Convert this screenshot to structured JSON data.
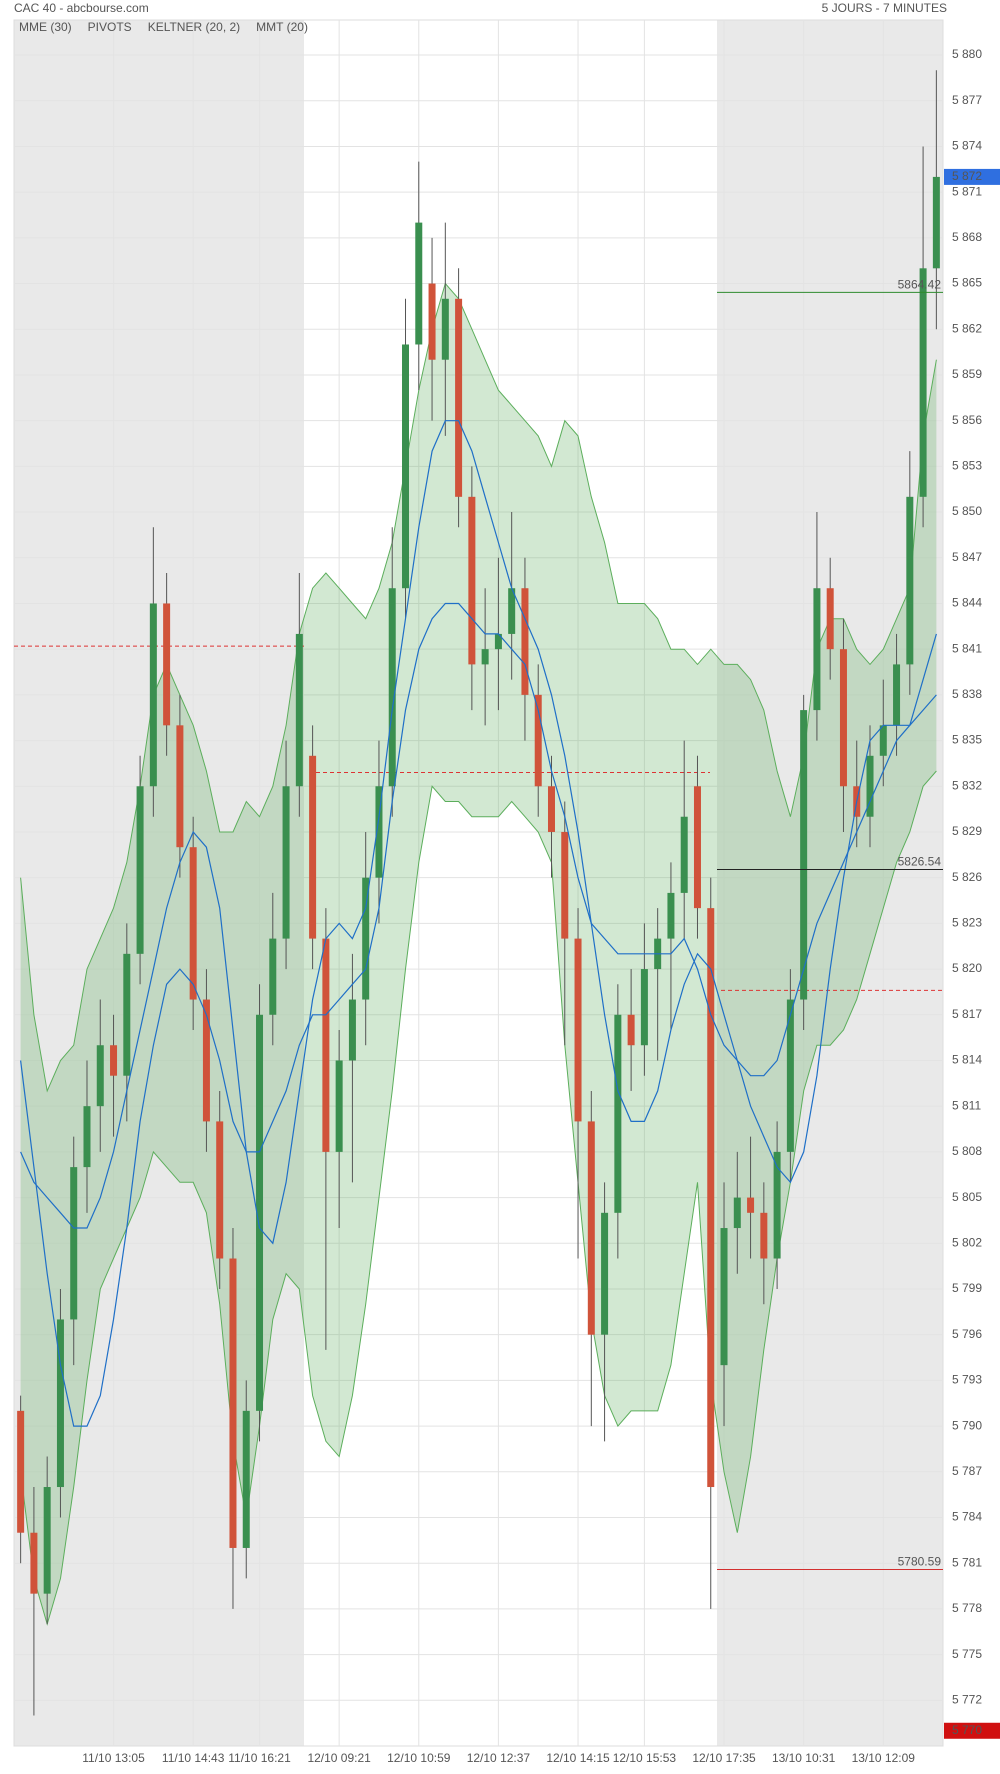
{
  "chart_data": {
    "type": "candlestick",
    "title": "CAC 40 - abcbourse.com",
    "subtitle": "5 JOURS - 7 MINUTES",
    "categories": [
      null,
      null,
      null,
      null,
      null,
      null,
      null,
      "11/10 13:05",
      null,
      null,
      null,
      null,
      null,
      "11/10 14:43",
      null,
      null,
      null,
      null,
      "11/10 16:21",
      null,
      null,
      null,
      null,
      null,
      "12/10 09:21",
      null,
      null,
      null,
      null,
      null,
      "12/10 10:59",
      null,
      null,
      null,
      null,
      null,
      "12/10 12:37",
      null,
      null,
      null,
      null,
      null,
      "12/10 14:15",
      null,
      null,
      null,
      null,
      "12/10 15:53",
      null,
      null,
      null,
      null,
      null,
      "12/10 17:35",
      null,
      null,
      null,
      null,
      null,
      "13/10 10:31",
      null,
      null,
      null,
      null,
      null,
      "13/10 12:09",
      null,
      null,
      null,
      null
    ],
    "ohlc": {
      "up_color": "#3a8f4f",
      "down_color": "#d0533a",
      "open": [
        5791,
        5783,
        5779,
        5786,
        5797,
        5807,
        5811,
        5815,
        5813,
        5821,
        5832,
        5844,
        5836,
        5828,
        5818,
        5810,
        5801,
        5782,
        5791,
        5817,
        5822,
        5832,
        5834,
        5822,
        5808,
        5814,
        5818,
        5826,
        5832,
        5845,
        5861,
        5865,
        5860,
        5864,
        5851,
        5840,
        5841,
        5842,
        5845,
        5838,
        5832,
        5829,
        5822,
        5810,
        5796,
        5804,
        5817,
        5815,
        5820,
        5822,
        5825,
        5832,
        5824,
        5794,
        5803,
        5805,
        5804,
        5801,
        5808,
        5818,
        5837,
        5845,
        5841,
        5832,
        5830,
        5834,
        5836,
        5840,
        5851,
        5866
      ],
      "high": [
        5792,
        5786,
        5788,
        5799,
        5809,
        5814,
        5818,
        5817,
        5823,
        5834,
        5849,
        5846,
        5838,
        5830,
        5820,
        5812,
        5803,
        5793,
        5819,
        5825,
        5835,
        5846,
        5836,
        5824,
        5816,
        5821,
        5829,
        5835,
        5849,
        5864,
        5873,
        5868,
        5869,
        5866,
        5853,
        5845,
        5847,
        5850,
        5847,
        5840,
        5834,
        5831,
        5824,
        5812,
        5806,
        5819,
        5820,
        5823,
        5824,
        5827,
        5835,
        5834,
        5826,
        5806,
        5808,
        5809,
        5806,
        5810,
        5820,
        5838,
        5850,
        5847,
        5843,
        5835,
        5836,
        5839,
        5842,
        5854,
        5874,
        5879
      ],
      "low": [
        5781,
        5771,
        5777,
        5784,
        5794,
        5804,
        5808,
        5809,
        5810,
        5819,
        5830,
        5834,
        5826,
        5816,
        5808,
        5799,
        5778,
        5780,
        5789,
        5815,
        5820,
        5830,
        5820,
        5795,
        5803,
        5806,
        5815,
        5823,
        5830,
        5843,
        5858,
        5856,
        5855,
        5849,
        5837,
        5836,
        5837,
        5839,
        5835,
        5830,
        5826,
        5815,
        5801,
        5790,
        5789,
        5801,
        5812,
        5813,
        5814,
        5816,
        5822,
        5822,
        5778,
        5790,
        5800,
        5801,
        5798,
        5799,
        5806,
        5816,
        5835,
        5839,
        5829,
        5828,
        5828,
        5832,
        5834,
        5838,
        5849,
        5862
      ],
      "close": [
        5783,
        5779,
        5786,
        5797,
        5807,
        5811,
        5815,
        5813,
        5821,
        5832,
        5844,
        5836,
        5828,
        5818,
        5810,
        5801,
        5782,
        5791,
        5817,
        5822,
        5832,
        5842,
        5822,
        5808,
        5814,
        5818,
        5826,
        5832,
        5845,
        5861,
        5869,
        5860,
        5864,
        5851,
        5840,
        5841,
        5842,
        5845,
        5838,
        5832,
        5829,
        5822,
        5810,
        5796,
        5804,
        5817,
        5815,
        5820,
        5822,
        5825,
        5830,
        5824,
        5786,
        5803,
        5805,
        5804,
        5801,
        5808,
        5818,
        5837,
        5845,
        5841,
        5832,
        5830,
        5834,
        5836,
        5840,
        5851,
        5866,
        5872
      ]
    },
    "keltner": {
      "name": "KELTNER (20, 2)",
      "color": "#5cae5c",
      "upper": [
        5826,
        5817,
        5812,
        5814,
        5815,
        5820,
        5822,
        5824,
        5827,
        5832,
        5838,
        5840,
        5838,
        5836,
        5833,
        5829,
        5829,
        5831,
        5830,
        5832,
        5836,
        5842,
        5845,
        5846,
        5845,
        5844,
        5843,
        5845,
        5848,
        5853,
        5858,
        5862,
        5865,
        5864,
        5862,
        5860,
        5858,
        5857,
        5856,
        5855,
        5853,
        5856,
        5855,
        5851,
        5848,
        5844,
        5844,
        5844,
        5843,
        5841,
        5841,
        5840,
        5841,
        5840,
        5840,
        5839,
        5837,
        5833,
        5830,
        5834,
        5841,
        5843,
        5843,
        5841,
        5840,
        5841,
        5843,
        5845,
        5855,
        5860
      ],
      "lower": [
        5787,
        5780,
        5777,
        5780,
        5786,
        5793,
        5799,
        5801,
        5803,
        5805,
        5808,
        5807,
        5806,
        5806,
        5804,
        5798,
        5789,
        5784,
        5790,
        5797,
        5800,
        5799,
        5792,
        5789,
        5788,
        5792,
        5798,
        5805,
        5812,
        5820,
        5827,
        5832,
        5831,
        5831,
        5830,
        5830,
        5830,
        5831,
        5830,
        5829,
        5827,
        5815,
        5806,
        5797,
        5792,
        5790,
        5791,
        5791,
        5791,
        5794,
        5800,
        5806,
        5793,
        5787,
        5783,
        5788,
        5795,
        5801,
        5806,
        5812,
        5815,
        5815,
        5816,
        5818,
        5821,
        5824,
        5827,
        5829,
        5832,
        5833
      ]
    },
    "series": [
      {
        "name": "MME (30)",
        "color": "#1f6fc7",
        "values": [
          5814,
          5807,
          5800,
          5794,
          5790,
          5790,
          5792,
          5797,
          5803,
          5810,
          5815,
          5819,
          5820,
          5819,
          5817,
          5814,
          5810,
          5808,
          5808,
          5810,
          5812,
          5815,
          5817,
          5817,
          5818,
          5819,
          5820,
          5824,
          5831,
          5837,
          5841,
          5843,
          5844,
          5844,
          5843,
          5842,
          5842,
          5841,
          5840,
          5837,
          5833,
          5830,
          5826,
          5823,
          5822,
          5821,
          5821,
          5821,
          5821,
          5821,
          5822,
          5820,
          5817,
          5815,
          5814,
          5813,
          5813,
          5814,
          5817,
          5820,
          5823,
          5825,
          5827,
          5829,
          5831,
          5833,
          5835,
          5836,
          5837,
          5838
        ]
      },
      {
        "name": "MMT (20)",
        "color": "#1f6fc7",
        "values": [
          5808,
          5806,
          5805,
          5804,
          5803,
          5803,
          5805,
          5808,
          5812,
          5816,
          5820,
          5824,
          5827,
          5829,
          5828,
          5824,
          5816,
          5808,
          5803,
          5802,
          5806,
          5812,
          5818,
          5822,
          5823,
          5822,
          5824,
          5830,
          5837,
          5843,
          5849,
          5854,
          5856,
          5856,
          5854,
          5851,
          5848,
          5845,
          5843,
          5841,
          5838,
          5834,
          5829,
          5823,
          5817,
          5812,
          5810,
          5810,
          5812,
          5816,
          5819,
          5821,
          5820,
          5817,
          5814,
          5811,
          5809,
          5807,
          5806,
          5808,
          5813,
          5820,
          5826,
          5831,
          5835,
          5836,
          5836,
          5836,
          5839,
          5842
        ]
      }
    ],
    "pivots": {
      "name": "PIVOTS",
      "color": "#d33",
      "values": [
        5841.2,
        5832.9,
        5818.6
      ]
    },
    "levels": [
      {
        "value": 5864.42,
        "color": "#2e8b2e"
      },
      {
        "value": 5826.54,
        "color": "#222222"
      },
      {
        "value": 5780.59,
        "color": "#d32f2f"
      }
    ],
    "price_markers": [
      {
        "value": 5872,
        "label": "5 872",
        "color": "#2f6fe0"
      },
      {
        "value": 5770,
        "label": "5 770",
        "color": "#d01010"
      }
    ],
    "ylim": [
      5769.0,
      5882.3
    ],
    "yticks": [
      {
        "value": 5772,
        "label": "5 772"
      },
      {
        "value": 5775,
        "label": "5 775"
      },
      {
        "value": 5778,
        "label": "5 778"
      },
      {
        "value": 5781,
        "label": "5 781"
      },
      {
        "value": 5784,
        "label": "5 784"
      },
      {
        "value": 5787,
        "label": "5 787"
      },
      {
        "value": 5790,
        "label": "5 790"
      },
      {
        "value": 5793,
        "label": "5 793"
      },
      {
        "value": 5796,
        "label": "5 796"
      },
      {
        "value": 5799,
        "label": "5 799"
      },
      {
        "value": 5802,
        "label": "5 802"
      },
      {
        "value": 5805,
        "label": "5 805"
      },
      {
        "value": 5808,
        "label": "5 808"
      },
      {
        "value": 5811,
        "label": "5 811"
      },
      {
        "value": 5814,
        "label": "5 814"
      },
      {
        "value": 5817,
        "label": "5 817"
      },
      {
        "value": 5820,
        "label": "5 820"
      },
      {
        "value": 5823,
        "label": "5 823"
      },
      {
        "value": 5826,
        "label": "5 826"
      },
      {
        "value": 5829,
        "label": "5 829"
      },
      {
        "value": 5832,
        "label": "5 832"
      },
      {
        "value": 5835,
        "label": "5 835"
      },
      {
        "value": 5838,
        "label": "5 838"
      },
      {
        "value": 5841,
        "label": "5 841"
      },
      {
        "value": 5844,
        "label": "5 844"
      },
      {
        "value": 5847,
        "label": "5 847"
      },
      {
        "value": 5850,
        "label": "5 850"
      },
      {
        "value": 5853,
        "label": "5 853"
      },
      {
        "value": 5856,
        "label": "5 856"
      },
      {
        "value": 5859,
        "label": "5 859"
      },
      {
        "value": 5862,
        "label": "5 862"
      },
      {
        "value": 5865,
        "label": "5 865"
      },
      {
        "value": 5868,
        "label": "5 868"
      },
      {
        "value": 5871,
        "label": "5 871"
      },
      {
        "value": 5874,
        "label": "5 874"
      },
      {
        "value": 5877,
        "label": "5 877"
      },
      {
        "value": 5880,
        "label": "5 880"
      }
    ],
    "grid": true
  }
}
